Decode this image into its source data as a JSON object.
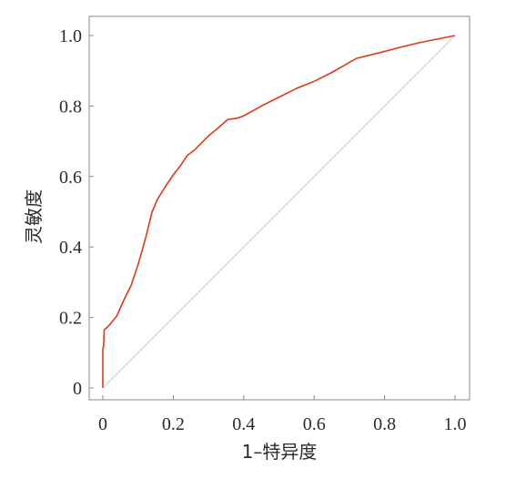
{
  "chart_data": {
    "type": "line",
    "xlabel": "1–特异度",
    "ylabel": "灵敏度",
    "xlim": [
      0,
      1.0
    ],
    "ylim": [
      0,
      1.0
    ],
    "x_ticks": [
      "0",
      "0.2",
      "0.4",
      "0.6",
      "0.8",
      "1.0"
    ],
    "x_tick_values": [
      0,
      0.2,
      0.4,
      0.6,
      0.8,
      1.0
    ],
    "y_ticks": [
      "0",
      "0.2",
      "0.4",
      "0.6",
      "0.8",
      "1.0"
    ],
    "y_tick_values": [
      0,
      0.2,
      0.4,
      0.6,
      0.8,
      1.0
    ],
    "grid": false,
    "series": [
      {
        "color": "#e0381c",
        "x": [
          0,
          0.0,
          0.002,
          0.004,
          0.01,
          0.02,
          0.04,
          0.06,
          0.08,
          0.1,
          0.12,
          0.14,
          0.155,
          0.18,
          0.2,
          0.22,
          0.24,
          0.26,
          0.3,
          0.33,
          0.355,
          0.38,
          0.4,
          0.45,
          0.5,
          0.55,
          0.6,
          0.65,
          0.72,
          0.8,
          0.85,
          0.9,
          1.0
        ],
        "y": [
          0,
          0.11,
          0.12,
          0.165,
          0.17,
          0.18,
          0.205,
          0.25,
          0.29,
          0.35,
          0.42,
          0.5,
          0.535,
          0.575,
          0.605,
          0.63,
          0.66,
          0.675,
          0.715,
          0.74,
          0.762,
          0.765,
          0.772,
          0.8,
          0.825,
          0.85,
          0.87,
          0.895,
          0.935,
          0.955,
          0.968,
          0.98,
          1.0
        ]
      },
      {
        "color": "#d0d0d0",
        "x": [
          0,
          1.0
        ],
        "y": [
          0,
          1.0
        ]
      }
    ]
  }
}
